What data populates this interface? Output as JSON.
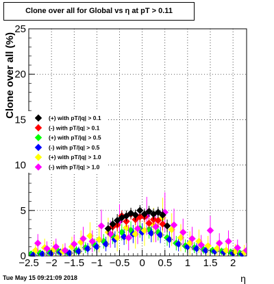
{
  "chart_data": {
    "type": "scatter",
    "title": "Clone  over all for Global vs   η at pT > 0.11",
    "xlabel": "η",
    "ylabel": "Clone  over all (%)",
    "xlim": [
      -2.5,
      2.3
    ],
    "ylim": [
      0,
      25
    ],
    "x_ticks": [
      -2.5,
      -2,
      -1.5,
      -1,
      -0.5,
      0,
      0.5,
      1,
      1.5,
      2
    ],
    "x_tick_labels": [
      "−2.5",
      "−2",
      "−1.5",
      "−1",
      "−0.5",
      "0",
      "0.5",
      "1",
      "1.5",
      "2"
    ],
    "y_ticks": [
      0,
      5,
      10,
      15,
      20,
      25
    ],
    "y_tick_labels": [
      "0",
      "5",
      "10",
      "15",
      "20",
      "25"
    ],
    "grid": true,
    "legend_position": "left",
    "timestamp": "Tue May 15 09:21:09 2018",
    "series": [
      {
        "name": "(+) with pT/|q| > 0.1",
        "color": "#000000",
        "x": [
          -0.75,
          -0.65,
          -0.55,
          -0.45,
          -0.35,
          -0.25,
          -0.15,
          -0.05,
          0.05,
          0.15,
          0.25,
          0.35,
          0.45,
          0.55
        ],
        "y": [
          3.0,
          3.5,
          3.9,
          4.2,
          4.4,
          4.7,
          4.5,
          5.0,
          4.6,
          4.9,
          4.6,
          4.8,
          4.5,
          3.3
        ],
        "err": [
          0.7,
          0.7,
          0.7,
          0.6,
          0.6,
          0.6,
          0.6,
          0.6,
          0.6,
          0.6,
          0.6,
          0.6,
          0.7,
          0.7
        ]
      },
      {
        "name": "(-) with pT/|q| > 0.1",
        "color": "#ff0000",
        "x": [
          -0.65,
          -0.55,
          -0.45,
          -0.35,
          -0.25,
          -0.15,
          -0.05,
          0.05,
          0.15,
          0.25,
          0.35,
          0.45
        ],
        "y": [
          3.2,
          3.4,
          4.4,
          3.8,
          4.6,
          4.0,
          4.3,
          4.3,
          3.6,
          4.0,
          3.9,
          3.5
        ],
        "err": [
          0.7,
          0.7,
          0.6,
          0.6,
          0.6,
          0.6,
          0.6,
          0.6,
          0.6,
          0.6,
          0.7,
          0.7
        ]
      },
      {
        "name": "(+) with pT/|q| > 0.5",
        "color": "#00ff00",
        "x": [
          -2.45,
          -2.25,
          -2.05,
          -1.85,
          -1.65,
          -1.45,
          -1.25,
          -1.05,
          -0.85,
          -0.65,
          -0.45,
          -0.25,
          -0.05,
          0.15,
          0.35,
          0.55,
          0.75,
          0.95,
          1.15,
          1.35,
          1.55,
          1.75,
          1.95,
          2.15
        ],
        "y": [
          0.2,
          0.3,
          0.4,
          0.5,
          0.4,
          0.6,
          0.9,
          1.2,
          1.6,
          2.2,
          2.6,
          2.8,
          3.0,
          2.9,
          2.6,
          2.0,
          1.4,
          1.1,
          0.9,
          0.7,
          0.6,
          0.5,
          0.4,
          0.3
        ],
        "err": [
          0.3,
          0.3,
          0.4,
          0.4,
          0.4,
          0.5,
          0.6,
          0.7,
          0.8,
          0.9,
          0.9,
          1.0,
          1.0,
          1.0,
          0.9,
          0.9,
          0.8,
          0.7,
          0.6,
          0.5,
          0.4,
          0.4,
          0.4,
          0.3
        ]
      },
      {
        "name": "(-) with pT/|q| > 0.5",
        "color": "#0000ff",
        "x": [
          -2.4,
          -2.2,
          -2.0,
          -1.8,
          -1.6,
          -1.4,
          -1.2,
          -1.0,
          -0.8,
          -0.6,
          -0.4,
          -0.2,
          0.0,
          0.2,
          0.4,
          0.6,
          0.8,
          1.0,
          1.2,
          1.4,
          1.6,
          1.8,
          2.0,
          2.2
        ],
        "y": [
          0.1,
          0.2,
          0.3,
          0.4,
          0.3,
          0.5,
          0.8,
          1.0,
          1.3,
          1.8,
          2.1,
          2.4,
          2.6,
          2.5,
          2.3,
          1.8,
          1.3,
          1.0,
          0.8,
          0.6,
          0.5,
          0.4,
          0.3,
          0.2
        ],
        "err": [
          0.3,
          0.3,
          0.3,
          0.4,
          0.4,
          0.5,
          0.6,
          0.7,
          0.8,
          0.9,
          0.9,
          1.0,
          1.0,
          1.0,
          0.9,
          0.9,
          0.8,
          0.7,
          0.6,
          0.5,
          0.4,
          0.4,
          0.3,
          0.3
        ]
      },
      {
        "name": "(+) with pT/|q| > 1.0",
        "color": "#ffff00",
        "x": [
          -2.35,
          -2.15,
          -1.95,
          -1.75,
          -1.55,
          -1.35,
          -1.15,
          -0.95,
          -0.75,
          -0.55,
          -0.35,
          -0.15,
          0.05,
          0.25,
          0.45,
          0.65,
          0.85,
          1.05,
          1.25,
          1.45,
          1.65,
          1.85,
          2.05,
          2.25
        ],
        "y": [
          0.6,
          0.9,
          0.7,
          0.5,
          1.0,
          1.5,
          2.2,
          1.8,
          2.6,
          2.0,
          3.1,
          2.4,
          2.8,
          3.4,
          4.2,
          2.9,
          2.0,
          1.4,
          1.6,
          1.1,
          0.8,
          0.6,
          0.5,
          0.4
        ],
        "err": [
          0.8,
          1.0,
          0.9,
          0.8,
          1.1,
          1.3,
          1.5,
          1.4,
          1.6,
          1.5,
          1.8,
          1.6,
          1.7,
          1.9,
          2.2,
          1.8,
          1.5,
          1.3,
          1.3,
          1.1,
          0.9,
          0.9,
          0.8,
          0.8
        ]
      },
      {
        "name": "(-) with pT/|q| > 1.0",
        "color": "#ff00ff",
        "x": [
          -2.3,
          -2.1,
          -1.9,
          -1.7,
          -1.5,
          -1.3,
          -1.1,
          -0.9,
          -0.7,
          -0.5,
          -0.3,
          -0.1,
          0.1,
          0.3,
          0.5,
          0.7,
          0.9,
          1.1,
          1.3,
          1.5,
          1.7,
          1.9,
          2.1,
          2.3
        ],
        "y": [
          1.4,
          0.8,
          1.0,
          0.6,
          1.3,
          1.9,
          1.6,
          3.3,
          2.4,
          3.8,
          2.0,
          3.0,
          4.4,
          3.2,
          4.8,
          3.4,
          2.6,
          1.9,
          1.2,
          2.8,
          1.4,
          1.6,
          0.9,
          0.6
        ],
        "err": [
          1.0,
          0.8,
          0.9,
          0.8,
          1.0,
          1.3,
          1.2,
          1.8,
          1.5,
          1.9,
          1.4,
          1.7,
          2.1,
          1.7,
          2.2,
          1.8,
          1.5,
          1.3,
          1.1,
          1.6,
          1.1,
          1.2,
          0.9,
          0.8
        ]
      }
    ]
  }
}
